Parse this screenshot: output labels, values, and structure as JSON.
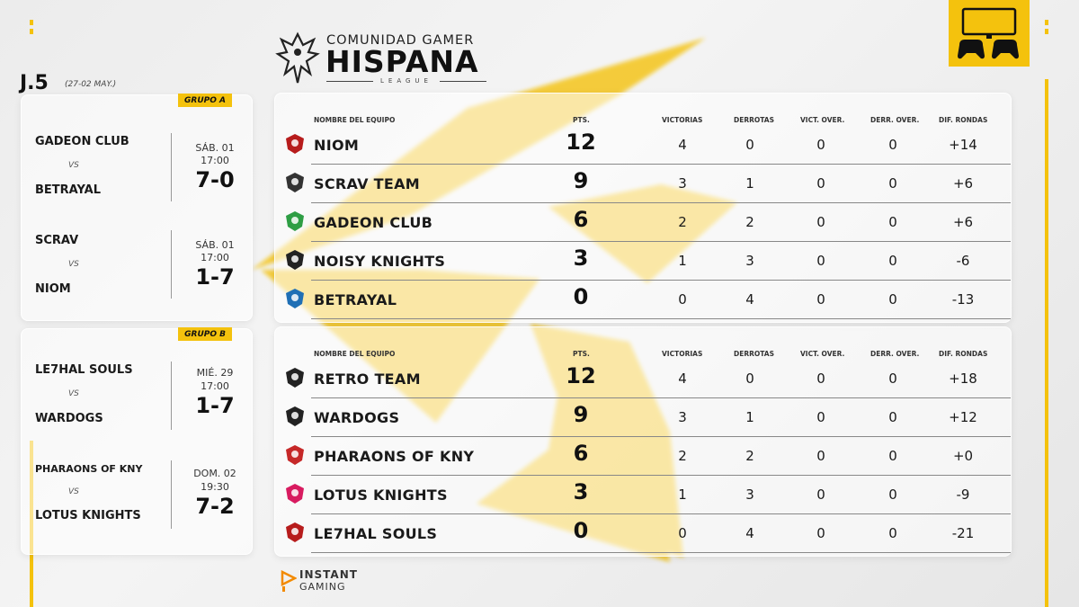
{
  "league": {
    "line1": "COMUNIDAD GAMER",
    "line2": "HISPANA",
    "line3": "LEAGUE"
  },
  "matchday": {
    "label": "J.5",
    "dates": "(27-02 MAY.)"
  },
  "sponsor": {
    "line1": "INSTANT",
    "line2": "GAMING"
  },
  "colors": {
    "accent": "#f4c20d",
    "text": "#1a1a1a"
  },
  "groups": [
    {
      "tag": "GRUPO A",
      "matches": [
        {
          "home": "GADEON CLUB",
          "away": "BETRAYAL",
          "vs": "VS",
          "day": "SÁB. 01",
          "time": "17:00",
          "score": "7-0"
        },
        {
          "home": "SCRAV",
          "away": "NIOM",
          "vs": "VS",
          "day": "SÁB. 01",
          "time": "17:00",
          "score": "1-7"
        }
      ],
      "headers": [
        "NOMBRE DEL EQUIPO",
        "PTS.",
        "VICTORIAS",
        "DERROTAS",
        "VICT. OVER.",
        "DERR. OVER.",
        "DIF. RONDAS"
      ],
      "standings": [
        {
          "team": "NIOM",
          "pts": "12",
          "wins": "4",
          "losses": "0",
          "ot_wins": "0",
          "ot_losses": "0",
          "diff": "+14",
          "logo_icon": "niom-logo-icon"
        },
        {
          "team": "SCRAV TEAM",
          "pts": "9",
          "wins": "3",
          "losses": "1",
          "ot_wins": "0",
          "ot_losses": "0",
          "diff": "+6",
          "logo_icon": "scrav-logo-icon"
        },
        {
          "team": "GADEON CLUB",
          "pts": "6",
          "wins": "2",
          "losses": "2",
          "ot_wins": "0",
          "ot_losses": "0",
          "diff": "+6",
          "logo_icon": "gadeon-logo-icon"
        },
        {
          "team": "NOISY KNIGHTS",
          "pts": "3",
          "wins": "1",
          "losses": "3",
          "ot_wins": "0",
          "ot_losses": "0",
          "diff": "-6",
          "logo_icon": "noisy-knights-logo-icon"
        },
        {
          "team": "BETRAYAL",
          "pts": "0",
          "wins": "0",
          "losses": "4",
          "ot_wins": "0",
          "ot_losses": "0",
          "diff": "-13",
          "logo_icon": "betrayal-logo-icon"
        }
      ]
    },
    {
      "tag": "GRUPO B",
      "matches": [
        {
          "home": "LE7HAL SOULS",
          "away": "WARDOGS",
          "vs": "VS",
          "day": "MIÉ. 29",
          "time": "17:00",
          "score": "1-7"
        },
        {
          "home": "PHARAONS OF KNY",
          "away": "LOTUS KNIGHTS",
          "vs": "VS",
          "day": "DOM. 02",
          "time": "19:30",
          "score": "7-2"
        }
      ],
      "headers": [
        "NOMBRE DEL EQUIPO",
        "PTS.",
        "VICTORIAS",
        "DERROTAS",
        "VICT. OVER.",
        "DERR. OVER.",
        "DIF. RONDAS"
      ],
      "standings": [
        {
          "team": "RETRO TEAM",
          "pts": "12",
          "wins": "4",
          "losses": "0",
          "ot_wins": "0",
          "ot_losses": "0",
          "diff": "+18",
          "logo_icon": "retro-team-logo-icon"
        },
        {
          "team": "WARDOGS",
          "pts": "9",
          "wins": "3",
          "losses": "1",
          "ot_wins": "0",
          "ot_losses": "0",
          "diff": "+12",
          "logo_icon": "wardogs-logo-icon"
        },
        {
          "team": "PHARAONS OF KNY",
          "pts": "6",
          "wins": "2",
          "losses": "2",
          "ot_wins": "0",
          "ot_losses": "0",
          "diff": "+0",
          "logo_icon": "pharaons-logo-icon"
        },
        {
          "team": "LOTUS KNIGHTS",
          "pts": "3",
          "wins": "1",
          "losses": "3",
          "ot_wins": "0",
          "ot_losses": "0",
          "diff": "-9",
          "logo_icon": "lotus-knights-logo-icon"
        },
        {
          "team": "LE7HAL SOULS",
          "pts": "0",
          "wins": "0",
          "losses": "4",
          "ot_wins": "0",
          "ot_losses": "0",
          "diff": "-21",
          "logo_icon": "le7hal-souls-logo-icon"
        }
      ]
    }
  ]
}
